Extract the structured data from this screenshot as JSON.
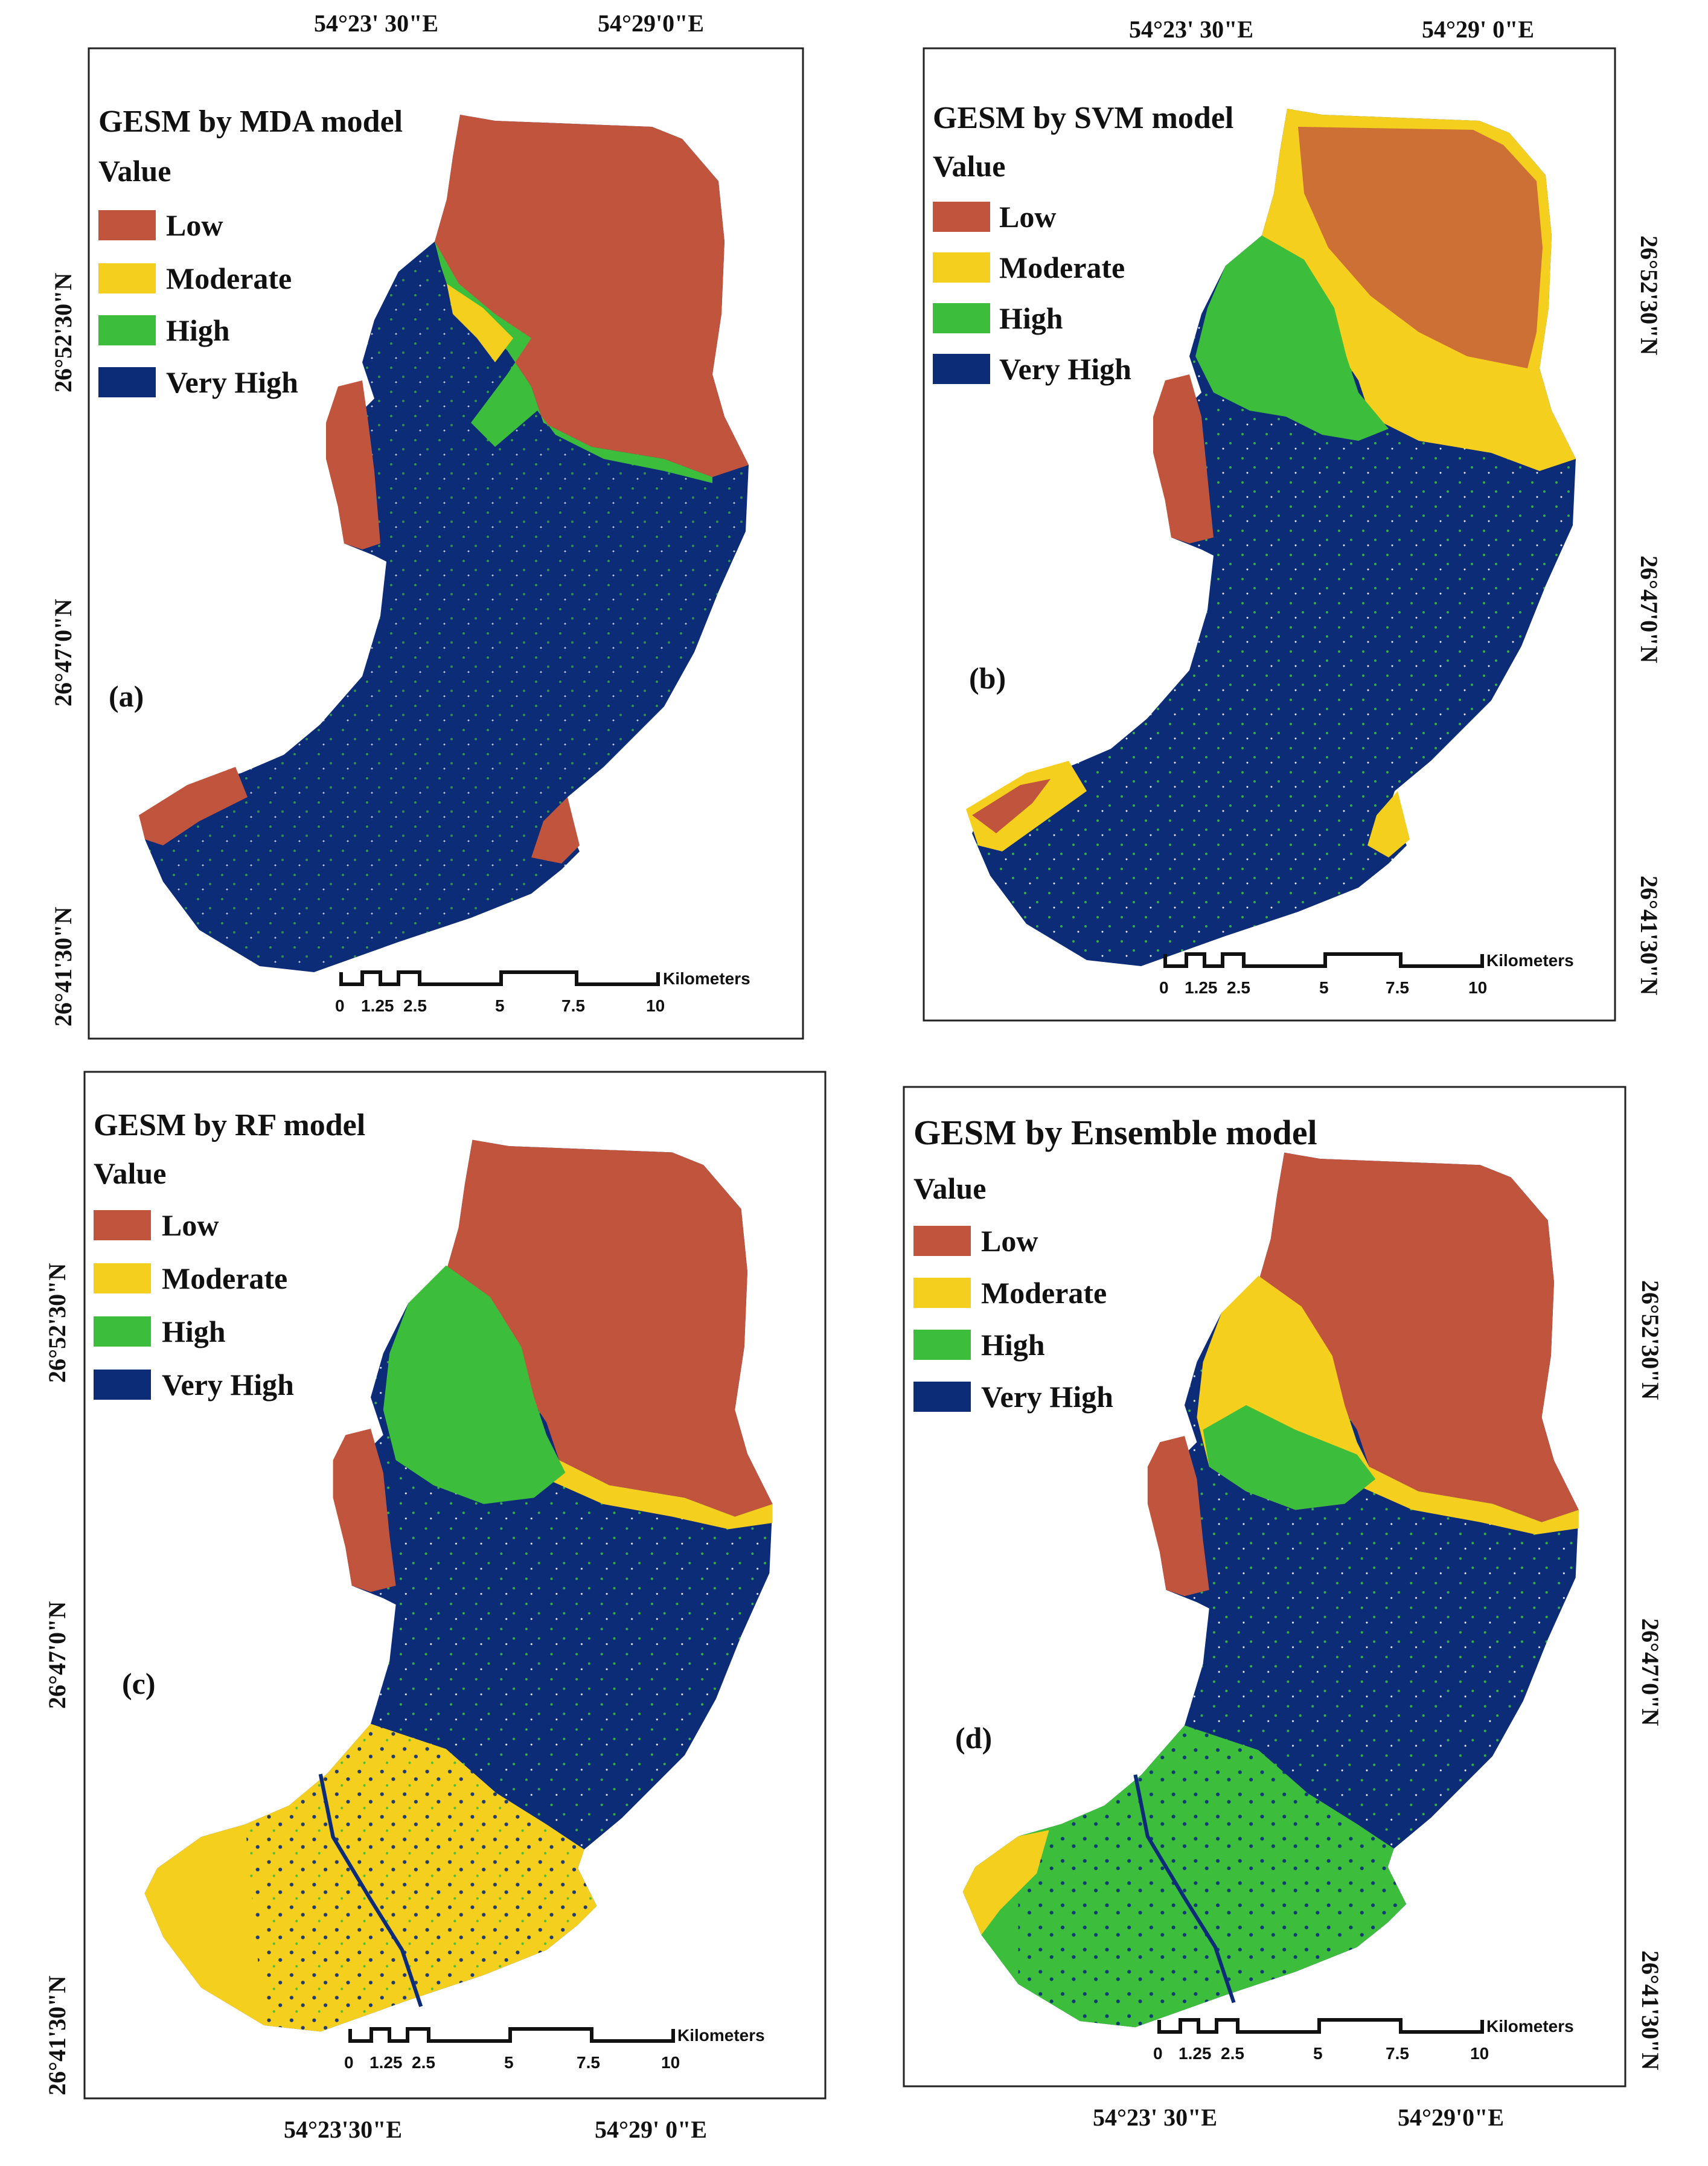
{
  "colors": {
    "low": "#c0543d",
    "moderate": "#f5cf1d",
    "high": "#3cbd3c",
    "very_high": "#0c2c78",
    "frame": "#222222"
  },
  "legend": {
    "heading": "Value",
    "classes": [
      "Low",
      "Moderate",
      "High",
      "Very High"
    ]
  },
  "scale_bar": {
    "ticks": [
      "0",
      "1.25",
      "2.5",
      "5",
      "7.5",
      "10"
    ],
    "unit": "Kilometers"
  },
  "coords": {
    "lon_left": "54°23'30\"E",
    "lon_right": "54°29'0\"E",
    "lat_top": "26°52'30\"N",
    "lat_mid": "26°47'0\"N",
    "lat_bottom": "26°41'30\"N"
  },
  "panels": [
    {
      "id": "a",
      "title": "GESM by MDA model",
      "label": "(a)",
      "lon_left": "54°23' 30\"E",
      "lon_right": "54°29'0\"E"
    },
    {
      "id": "b",
      "title": "GESM by SVM model",
      "label": "(b)",
      "lon_left": "54°23' 30\"E",
      "lon_right": "54°29' 0\"E"
    },
    {
      "id": "c",
      "title": "GESM by RF model",
      "label": "(c)",
      "lon_left": "54°23'30\"E",
      "lon_right": "54°29' 0\"E"
    },
    {
      "id": "d",
      "title": "GESM by Ensemble model",
      "label": "(d)",
      "lon_left": "54°23' 30\"E",
      "lon_right": "54°29'0\"E"
    }
  ]
}
